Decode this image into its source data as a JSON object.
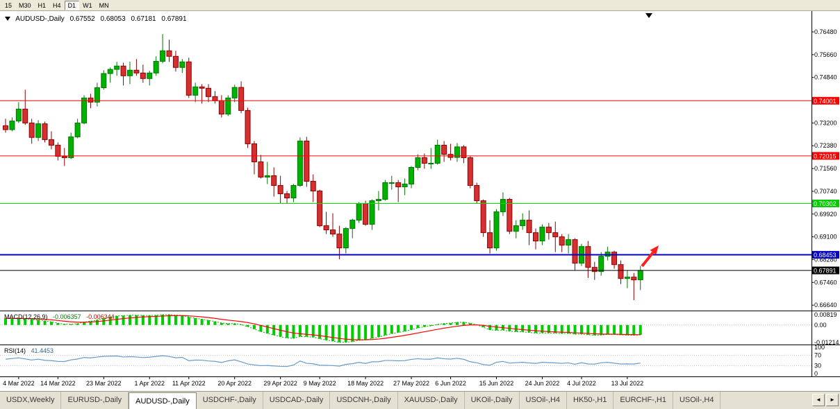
{
  "window": {
    "background": "#ECE9D8"
  },
  "toolbar": {
    "periods": [
      "15",
      "M30",
      "H1",
      "H4",
      "D1",
      "W1",
      "MN"
    ],
    "active_period": "D1"
  },
  "chart": {
    "title": {
      "symbol": "AUDUSD-,Daily",
      "open": "0.67552",
      "high": "0.68053",
      "low": "0.67181",
      "close": "0.67891"
    },
    "price_axis": {
      "ticks": [
        "0.76480",
        "0.75660",
        "0.74840",
        "0.73200",
        "0.72380",
        "0.71560",
        "0.70740",
        "0.69920",
        "0.69100",
        "0.68280",
        "0.67460",
        "0.66640"
      ],
      "tags": [
        {
          "label": "0.74001",
          "price": 0.74001,
          "bg": "#FF0000",
          "fg": "#FFFFFF"
        },
        {
          "label": "0.72015",
          "price": 0.72015,
          "bg": "#FF0000",
          "fg": "#FFFFFF"
        },
        {
          "label": "0.70302",
          "price": 0.70302,
          "bg": "#00CC00",
          "fg": "#FFFFFF"
        },
        {
          "label": "0.68453",
          "price": 0.68453,
          "bg": "#0000C8",
          "fg": "#FFFFFF"
        },
        {
          "label": "0.67891",
          "price": 0.67891,
          "bg": "#000000",
          "fg": "#FFFFFF"
        }
      ]
    },
    "levels": [
      {
        "price": 0.74001,
        "color": "#FF0000",
        "width": 1
      },
      {
        "price": 0.72015,
        "color": "#FF0000",
        "width": 1
      },
      {
        "price": 0.70302,
        "color": "#00DD00",
        "width": 1
      },
      {
        "price": 0.68453,
        "color": "#0000C8",
        "width": 2
      },
      {
        "price": 0.67891,
        "color": "#000000",
        "width": 1
      }
    ],
    "date_axis": {
      "tick_indices": [
        2,
        8,
        15,
        22,
        28,
        35,
        42,
        48,
        55,
        62,
        68,
        75,
        82,
        88,
        95
      ],
      "labels": [
        "4 Mar 2022",
        "14 Mar 2022",
        "23 Mar 2022",
        "1 Apr 2022",
        "11 Apr 2022",
        "20 Apr 2022",
        "29 Apr 2022",
        "9 May 2022",
        "18 May 2022",
        "27 May 2022",
        "6 Jun 2022",
        "15 Jun 2022",
        "24 Jun 2022",
        "4 Jul 2022",
        "13 Jul 2022"
      ]
    },
    "annotation_arrow": {
      "color": "#FF2020"
    }
  },
  "chart_data": {
    "type": "candlestick",
    "symbol": "AUDUSD",
    "timeframe": "Daily",
    "up_color": "#00B200",
    "up_border": "#007700",
    "down_color": "#D53030",
    "down_border": "#8F0000",
    "ylim": [
      0.66447,
      0.7688
    ],
    "candles": [
      [
        0.731,
        0.7335,
        0.7285,
        0.7296
      ],
      [
        0.7296,
        0.734,
        0.729,
        0.7327
      ],
      [
        0.7327,
        0.7395,
        0.732,
        0.737
      ],
      [
        0.737,
        0.744,
        0.7313,
        0.732
      ],
      [
        0.732,
        0.7335,
        0.7245,
        0.7268
      ],
      [
        0.7268,
        0.733,
        0.7255,
        0.7317
      ],
      [
        0.7317,
        0.7325,
        0.725,
        0.726
      ],
      [
        0.726,
        0.729,
        0.7225,
        0.724
      ],
      [
        0.724,
        0.725,
        0.7185,
        0.72
      ],
      [
        0.72,
        0.723,
        0.7165,
        0.7195
      ],
      [
        0.7195,
        0.7285,
        0.719,
        0.727
      ],
      [
        0.727,
        0.7335,
        0.7265,
        0.732
      ],
      [
        0.732,
        0.742,
        0.7315,
        0.741
      ],
      [
        0.741,
        0.7425,
        0.7373,
        0.7395
      ],
      [
        0.7395,
        0.7465,
        0.738,
        0.7447
      ],
      [
        0.7447,
        0.751,
        0.744,
        0.7498
      ],
      [
        0.7498,
        0.752,
        0.7465,
        0.7513
      ],
      [
        0.7513,
        0.754,
        0.749,
        0.7525
      ],
      [
        0.7525,
        0.7537,
        0.7455,
        0.749
      ],
      [
        0.749,
        0.7541,
        0.746,
        0.751
      ],
      [
        0.751,
        0.755,
        0.749,
        0.75
      ],
      [
        0.75,
        0.753,
        0.7465,
        0.748
      ],
      [
        0.748,
        0.7508,
        0.7455,
        0.75
      ],
      [
        0.75,
        0.756,
        0.749,
        0.7542
      ],
      [
        0.7542,
        0.764,
        0.7535,
        0.758
      ],
      [
        0.758,
        0.762,
        0.754,
        0.756
      ],
      [
        0.756,
        0.758,
        0.7505,
        0.752
      ],
      [
        0.752,
        0.755,
        0.75,
        0.754
      ],
      [
        0.754,
        0.7555,
        0.741,
        0.742
      ],
      [
        0.742,
        0.7465,
        0.7395,
        0.745
      ],
      [
        0.745,
        0.746,
        0.739,
        0.7445
      ],
      [
        0.7445,
        0.746,
        0.7395,
        0.7415
      ],
      [
        0.7415,
        0.7435,
        0.739,
        0.74
      ],
      [
        0.74,
        0.742,
        0.734,
        0.7352
      ],
      [
        0.7352,
        0.742,
        0.7345,
        0.741
      ],
      [
        0.741,
        0.7458,
        0.7395,
        0.7448
      ],
      [
        0.7448,
        0.747,
        0.7355,
        0.7365
      ],
      [
        0.7365,
        0.7375,
        0.723,
        0.7245
      ],
      [
        0.7245,
        0.7255,
        0.7135,
        0.718
      ],
      [
        0.718,
        0.7205,
        0.712,
        0.7125
      ],
      [
        0.7125,
        0.718,
        0.71,
        0.713
      ],
      [
        0.713,
        0.716,
        0.7055,
        0.7095
      ],
      [
        0.7095,
        0.713,
        0.703,
        0.7065
      ],
      [
        0.7065,
        0.7075,
        0.7029,
        0.705
      ],
      [
        0.705,
        0.71,
        0.7035,
        0.7095
      ],
      [
        0.7095,
        0.7268,
        0.709,
        0.7255
      ],
      [
        0.7255,
        0.727,
        0.709,
        0.711
      ],
      [
        0.711,
        0.7135,
        0.7035,
        0.7075
      ],
      [
        0.7075,
        0.708,
        0.6945,
        0.695
      ],
      [
        0.695,
        0.7,
        0.692,
        0.6935
      ],
      [
        0.6935,
        0.6995,
        0.691,
        0.692
      ],
      [
        0.692,
        0.695,
        0.6829,
        0.687
      ],
      [
        0.687,
        0.6945,
        0.685,
        0.694
      ],
      [
        0.694,
        0.6975,
        0.6905,
        0.697
      ],
      [
        0.697,
        0.7035,
        0.696,
        0.703
      ],
      [
        0.703,
        0.704,
        0.695,
        0.6955
      ],
      [
        0.6955,
        0.7045,
        0.6935,
        0.704
      ],
      [
        0.704,
        0.7075,
        0.7005,
        0.7045
      ],
      [
        0.7045,
        0.7115,
        0.704,
        0.7105
      ],
      [
        0.7105,
        0.713,
        0.708,
        0.7105
      ],
      [
        0.7105,
        0.7115,
        0.7035,
        0.709
      ],
      [
        0.709,
        0.712,
        0.706,
        0.71
      ],
      [
        0.71,
        0.7165,
        0.7085,
        0.716
      ],
      [
        0.716,
        0.7207,
        0.715,
        0.7195
      ],
      [
        0.7195,
        0.721,
        0.7155,
        0.7175
      ],
      [
        0.7175,
        0.723,
        0.7155,
        0.7175
      ],
      [
        0.7175,
        0.726,
        0.717,
        0.724
      ],
      [
        0.724,
        0.7255,
        0.718,
        0.7207
      ],
      [
        0.7207,
        0.7245,
        0.7185,
        0.7196
      ],
      [
        0.7196,
        0.7248,
        0.718,
        0.7234
      ],
      [
        0.7234,
        0.724,
        0.7175,
        0.7195
      ],
      [
        0.7195,
        0.72,
        0.7085,
        0.7095
      ],
      [
        0.7095,
        0.7105,
        0.703,
        0.704
      ],
      [
        0.704,
        0.7045,
        0.691,
        0.6925
      ],
      [
        0.6925,
        0.697,
        0.685,
        0.687
      ],
      [
        0.687,
        0.701,
        0.686,
        0.7
      ],
      [
        0.7,
        0.707,
        0.6985,
        0.7045
      ],
      [
        0.7045,
        0.705,
        0.692,
        0.693
      ],
      [
        0.693,
        0.697,
        0.6905,
        0.695
      ],
      [
        0.695,
        0.6995,
        0.6935,
        0.697
      ],
      [
        0.697,
        0.7005,
        0.688,
        0.6925
      ],
      [
        0.6925,
        0.694,
        0.6865,
        0.6895
      ],
      [
        0.6895,
        0.6955,
        0.688,
        0.6945
      ],
      [
        0.6945,
        0.696,
        0.69,
        0.6925
      ],
      [
        0.6925,
        0.6965,
        0.6855,
        0.691
      ],
      [
        0.691,
        0.692,
        0.6855,
        0.688
      ],
      [
        0.688,
        0.692,
        0.685,
        0.69
      ],
      [
        0.69,
        0.6905,
        0.679,
        0.6815
      ],
      [
        0.6815,
        0.6885,
        0.6805,
        0.6875
      ],
      [
        0.6875,
        0.6895,
        0.6762,
        0.68
      ],
      [
        0.68,
        0.682,
        0.6755,
        0.6785
      ],
      [
        0.6785,
        0.6855,
        0.677,
        0.684
      ],
      [
        0.684,
        0.6875,
        0.6825,
        0.6855
      ],
      [
        0.6855,
        0.686,
        0.6795,
        0.681
      ],
      [
        0.681,
        0.6825,
        0.674,
        0.676
      ],
      [
        0.676,
        0.679,
        0.6725,
        0.6765
      ],
      [
        0.6765,
        0.678,
        0.6682,
        0.6755
      ],
      [
        0.67552,
        0.68053,
        0.67181,
        0.67891
      ]
    ]
  },
  "indicators": {
    "macd": {
      "label": "MACD(12,26,9)",
      "main_value": "-0.006357",
      "signal_value": "-0.006344",
      "axis_labels": [
        "0.00819",
        "0.00",
        "-0.01214"
      ],
      "range_max": 0.009,
      "range_min": -0.0135,
      "histogram_color": "#00CC00",
      "main_line_color": "#00AA00",
      "signal_color": "#FF0000",
      "params": [
        12,
        26,
        9
      ]
    },
    "rsi": {
      "label": "RSI(14)",
      "value": "41.4453",
      "axis_labels": [
        "100",
        "70",
        "30",
        "0"
      ],
      "levels": [
        70,
        30
      ],
      "line_color": "#6699CC",
      "period": 14
    }
  },
  "tabbar": {
    "tabs": [
      "USDX,Weekly",
      "EURUSD-,Daily",
      "AUDUSD-,Daily",
      "USDCHF-,Daily",
      "USDCAD-,Daily",
      "USDCNH-,Daily",
      "XAUUSD-,Daily",
      "UKOil-,Daily",
      "USOil-,H4",
      "HK50-,H1",
      "EURCHF-,H1",
      "USOil-,H4"
    ],
    "active_index": 2,
    "active_tab": "AUDUSD-,Daily",
    "scroll_left_icon": "◄",
    "scroll_right_icon": "►"
  }
}
